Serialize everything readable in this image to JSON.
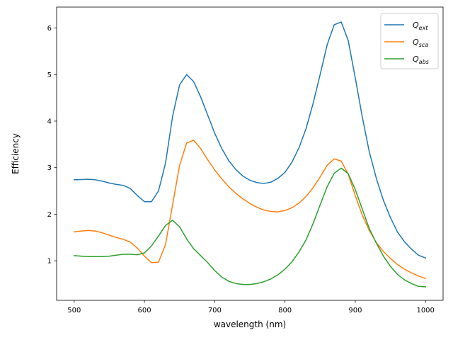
{
  "chart_data": {
    "type": "line",
    "xlabel": "wavelength (nm)",
    "ylabel": "Efficiency",
    "xlim": [
      475,
      1025
    ],
    "ylim": [
      0.15,
      6.45
    ],
    "xticks": [
      500,
      600,
      700,
      800,
      900,
      1000
    ],
    "yticks": [
      1,
      2,
      3,
      4,
      5,
      6
    ],
    "grid": false,
    "legend_position": "top-right",
    "x": [
      500,
      510,
      520,
      530,
      540,
      550,
      560,
      570,
      580,
      590,
      600,
      610,
      620,
      630,
      640,
      650,
      660,
      670,
      680,
      690,
      700,
      710,
      720,
      730,
      740,
      750,
      760,
      770,
      780,
      790,
      800,
      810,
      820,
      830,
      840,
      850,
      860,
      870,
      880,
      890,
      900,
      910,
      920,
      930,
      940,
      950,
      960,
      970,
      980,
      990,
      1000
    ],
    "series": [
      {
        "name": "Q_ext",
        "legend_main": "Q",
        "legend_sub": "ext",
        "color": "#1f77b4",
        "values": [
          2.74,
          2.745,
          2.75,
          2.74,
          2.71,
          2.67,
          2.64,
          2.62,
          2.55,
          2.4,
          2.27,
          2.27,
          2.5,
          3.1,
          4.1,
          4.78,
          5.0,
          4.85,
          4.52,
          4.13,
          3.74,
          3.41,
          3.15,
          2.96,
          2.82,
          2.73,
          2.68,
          2.66,
          2.69,
          2.77,
          2.9,
          3.12,
          3.43,
          3.84,
          4.38,
          5.0,
          5.64,
          6.07,
          6.13,
          5.73,
          4.93,
          4.09,
          3.34,
          2.77,
          2.3,
          1.93,
          1.62,
          1.41,
          1.25,
          1.12,
          1.06
        ]
      },
      {
        "name": "Q_sca",
        "legend_main": "Q",
        "legend_sub": "sca",
        "color": "#ff7f0e",
        "values": [
          1.62,
          1.64,
          1.65,
          1.64,
          1.6,
          1.55,
          1.5,
          1.46,
          1.4,
          1.27,
          1.1,
          0.96,
          0.97,
          1.35,
          2.2,
          3.05,
          3.53,
          3.59,
          3.41,
          3.17,
          2.95,
          2.76,
          2.59,
          2.45,
          2.33,
          2.23,
          2.15,
          2.09,
          2.06,
          2.05,
          2.08,
          2.14,
          2.24,
          2.38,
          2.57,
          2.8,
          3.05,
          3.19,
          3.14,
          2.86,
          2.4,
          1.98,
          1.65,
          1.39,
          1.2,
          1.05,
          0.92,
          0.82,
          0.74,
          0.67,
          0.62
        ]
      },
      {
        "name": "Q_abs",
        "legend_main": "Q",
        "legend_sub": "abs",
        "color": "#2ca02c",
        "values": [
          1.11,
          1.1,
          1.09,
          1.09,
          1.09,
          1.1,
          1.12,
          1.14,
          1.14,
          1.13,
          1.17,
          1.32,
          1.53,
          1.76,
          1.87,
          1.73,
          1.47,
          1.26,
          1.11,
          0.96,
          0.79,
          0.65,
          0.56,
          0.51,
          0.49,
          0.49,
          0.51,
          0.55,
          0.61,
          0.7,
          0.82,
          0.98,
          1.19,
          1.45,
          1.8,
          2.2,
          2.59,
          2.88,
          2.99,
          2.87,
          2.53,
          2.11,
          1.69,
          1.38,
          1.1,
          0.88,
          0.71,
          0.59,
          0.51,
          0.45,
          0.44
        ]
      }
    ]
  }
}
